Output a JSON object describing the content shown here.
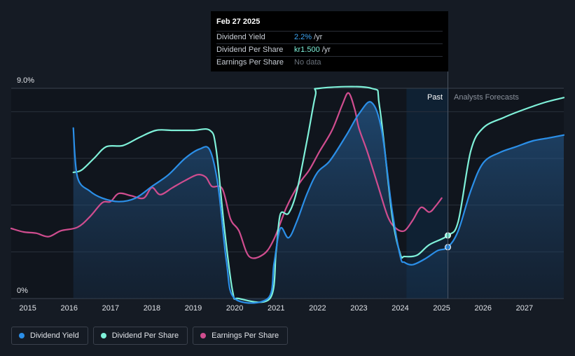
{
  "tooltip": {
    "date": "Feb 27 2025",
    "rows": [
      {
        "label": "Dividend Yield",
        "value": "2.2%",
        "unit": "/yr"
      },
      {
        "label": "Dividend Per Share",
        "value": "kr1.500",
        "unit": "/yr"
      },
      {
        "label": "Earnings Per Share",
        "value": "No data",
        "unit": ""
      }
    ]
  },
  "regions": {
    "past_label": "Past",
    "forecast_label": "Analysts Forecasts"
  },
  "legend": [
    {
      "label": "Dividend Yield",
      "color": "#2b8fe8"
    },
    {
      "label": "Dividend Per Share",
      "color": "#7ff1d9"
    },
    {
      "label": "Earnings Per Share",
      "color": "#d04d8f"
    }
  ],
  "chart_data": {
    "type": "line",
    "y_tick_labels": [
      "9.0%",
      "0%"
    ],
    "ylim": [
      0,
      9
    ],
    "xlim": [
      2014.6,
      2027.95
    ],
    "x_ticks": [
      2015,
      2016,
      2017,
      2018,
      2019,
      2020,
      2021,
      2022,
      2023,
      2024,
      2025,
      2026,
      2027
    ],
    "past_region": [
      2024.15,
      2025.17
    ],
    "series": [
      {
        "name": "Dividend Yield",
        "color": "#2b8fe8",
        "filled": true,
        "points": [
          [
            2016.1,
            7.3
          ],
          [
            2016.2,
            5.2
          ],
          [
            2016.5,
            4.6
          ],
          [
            2016.8,
            4.3
          ],
          [
            2017.2,
            4.15
          ],
          [
            2017.6,
            4.3
          ],
          [
            2018.0,
            4.8
          ],
          [
            2018.4,
            5.3
          ],
          [
            2018.8,
            6.0
          ],
          [
            2019.15,
            6.4
          ],
          [
            2019.4,
            6.35
          ],
          [
            2019.6,
            4.8
          ],
          [
            2019.8,
            1.6
          ],
          [
            2020.0,
            0
          ],
          [
            2020.8,
            0
          ],
          [
            2020.95,
            1.5
          ],
          [
            2021.1,
            3.0
          ],
          [
            2021.3,
            2.6
          ],
          [
            2021.5,
            3.3
          ],
          [
            2021.75,
            4.5
          ],
          [
            2022.0,
            5.4
          ],
          [
            2022.3,
            5.9
          ],
          [
            2022.7,
            7.0
          ],
          [
            2023.0,
            7.9
          ],
          [
            2023.3,
            8.4
          ],
          [
            2023.55,
            7.2
          ],
          [
            2023.8,
            3.8
          ],
          [
            2024.0,
            1.8
          ],
          [
            2024.1,
            1.55
          ],
          [
            2024.3,
            1.45
          ],
          [
            2024.6,
            1.7
          ],
          [
            2024.9,
            2.05
          ],
          [
            2025.15,
            2.2
          ],
          [
            2025.4,
            2.9
          ],
          [
            2025.7,
            4.6
          ],
          [
            2026.0,
            5.8
          ],
          [
            2026.4,
            6.25
          ],
          [
            2026.8,
            6.5
          ],
          [
            2027.2,
            6.75
          ],
          [
            2027.6,
            6.88
          ],
          [
            2027.95,
            7.0
          ]
        ]
      },
      {
        "name": "Dividend Per Share",
        "color": "#7ff1d9",
        "filled": false,
        "points": [
          [
            2016.1,
            5.4
          ],
          [
            2016.3,
            5.5
          ],
          [
            2016.6,
            6.0
          ],
          [
            2016.9,
            6.5
          ],
          [
            2017.3,
            6.55
          ],
          [
            2017.7,
            6.9
          ],
          [
            2018.1,
            7.2
          ],
          [
            2018.5,
            7.2
          ],
          [
            2019.0,
            7.2
          ],
          [
            2019.4,
            7.2
          ],
          [
            2019.55,
            6.4
          ],
          [
            2019.75,
            3.0
          ],
          [
            2019.95,
            0.3
          ],
          [
            2020.1,
            0
          ],
          [
            2020.85,
            0
          ],
          [
            2021.0,
            2.0
          ],
          [
            2021.1,
            3.6
          ],
          [
            2021.3,
            3.65
          ],
          [
            2021.5,
            4.6
          ],
          [
            2021.75,
            6.8
          ],
          [
            2021.95,
            8.7
          ],
          [
            2022.05,
            9.0
          ],
          [
            2023.3,
            9.0
          ],
          [
            2023.5,
            8.2
          ],
          [
            2023.8,
            3.6
          ],
          [
            2024.0,
            1.9
          ],
          [
            2024.1,
            1.8
          ],
          [
            2024.4,
            1.85
          ],
          [
            2024.7,
            2.3
          ],
          [
            2025.15,
            2.7
          ],
          [
            2025.4,
            3.3
          ],
          [
            2025.7,
            6.3
          ],
          [
            2026.0,
            7.3
          ],
          [
            2026.5,
            7.75
          ],
          [
            2027.0,
            8.1
          ],
          [
            2027.5,
            8.4
          ],
          [
            2027.95,
            8.6
          ]
        ]
      },
      {
        "name": "Earnings Per Share",
        "color": "#d04d8f",
        "filled": false,
        "points": [
          [
            2014.6,
            3.0
          ],
          [
            2014.9,
            2.85
          ],
          [
            2015.2,
            2.8
          ],
          [
            2015.5,
            2.65
          ],
          [
            2015.8,
            2.9
          ],
          [
            2016.2,
            3.05
          ],
          [
            2016.5,
            3.5
          ],
          [
            2016.8,
            4.1
          ],
          [
            2017.0,
            4.15
          ],
          [
            2017.2,
            4.5
          ],
          [
            2017.5,
            4.4
          ],
          [
            2017.8,
            4.3
          ],
          [
            2018.0,
            4.75
          ],
          [
            2018.2,
            4.45
          ],
          [
            2018.5,
            4.75
          ],
          [
            2018.8,
            5.05
          ],
          [
            2019.1,
            5.3
          ],
          [
            2019.3,
            5.2
          ],
          [
            2019.45,
            4.8
          ],
          [
            2019.7,
            4.7
          ],
          [
            2019.9,
            3.4
          ],
          [
            2020.1,
            2.9
          ],
          [
            2020.35,
            1.8
          ],
          [
            2020.7,
            1.9
          ],
          [
            2020.95,
            2.55
          ],
          [
            2021.25,
            3.9
          ],
          [
            2021.55,
            4.9
          ],
          [
            2021.8,
            5.5
          ],
          [
            2022.05,
            6.3
          ],
          [
            2022.35,
            7.2
          ],
          [
            2022.6,
            8.3
          ],
          [
            2022.75,
            8.8
          ],
          [
            2022.9,
            8.1
          ],
          [
            2023.0,
            7.3
          ],
          [
            2023.2,
            6.3
          ],
          [
            2023.45,
            4.9
          ],
          [
            2023.7,
            3.5
          ],
          [
            2023.9,
            3.0
          ],
          [
            2024.1,
            2.9
          ],
          [
            2024.3,
            3.35
          ],
          [
            2024.5,
            3.9
          ],
          [
            2024.7,
            3.7
          ],
          [
            2024.85,
            3.95
          ],
          [
            2025.0,
            4.3
          ]
        ]
      }
    ],
    "markers": [
      {
        "series": "Dividend Yield",
        "x": 2025.15,
        "y": 2.2
      },
      {
        "series": "Dividend Per Share",
        "x": 2025.15,
        "y": 2.7
      }
    ]
  }
}
